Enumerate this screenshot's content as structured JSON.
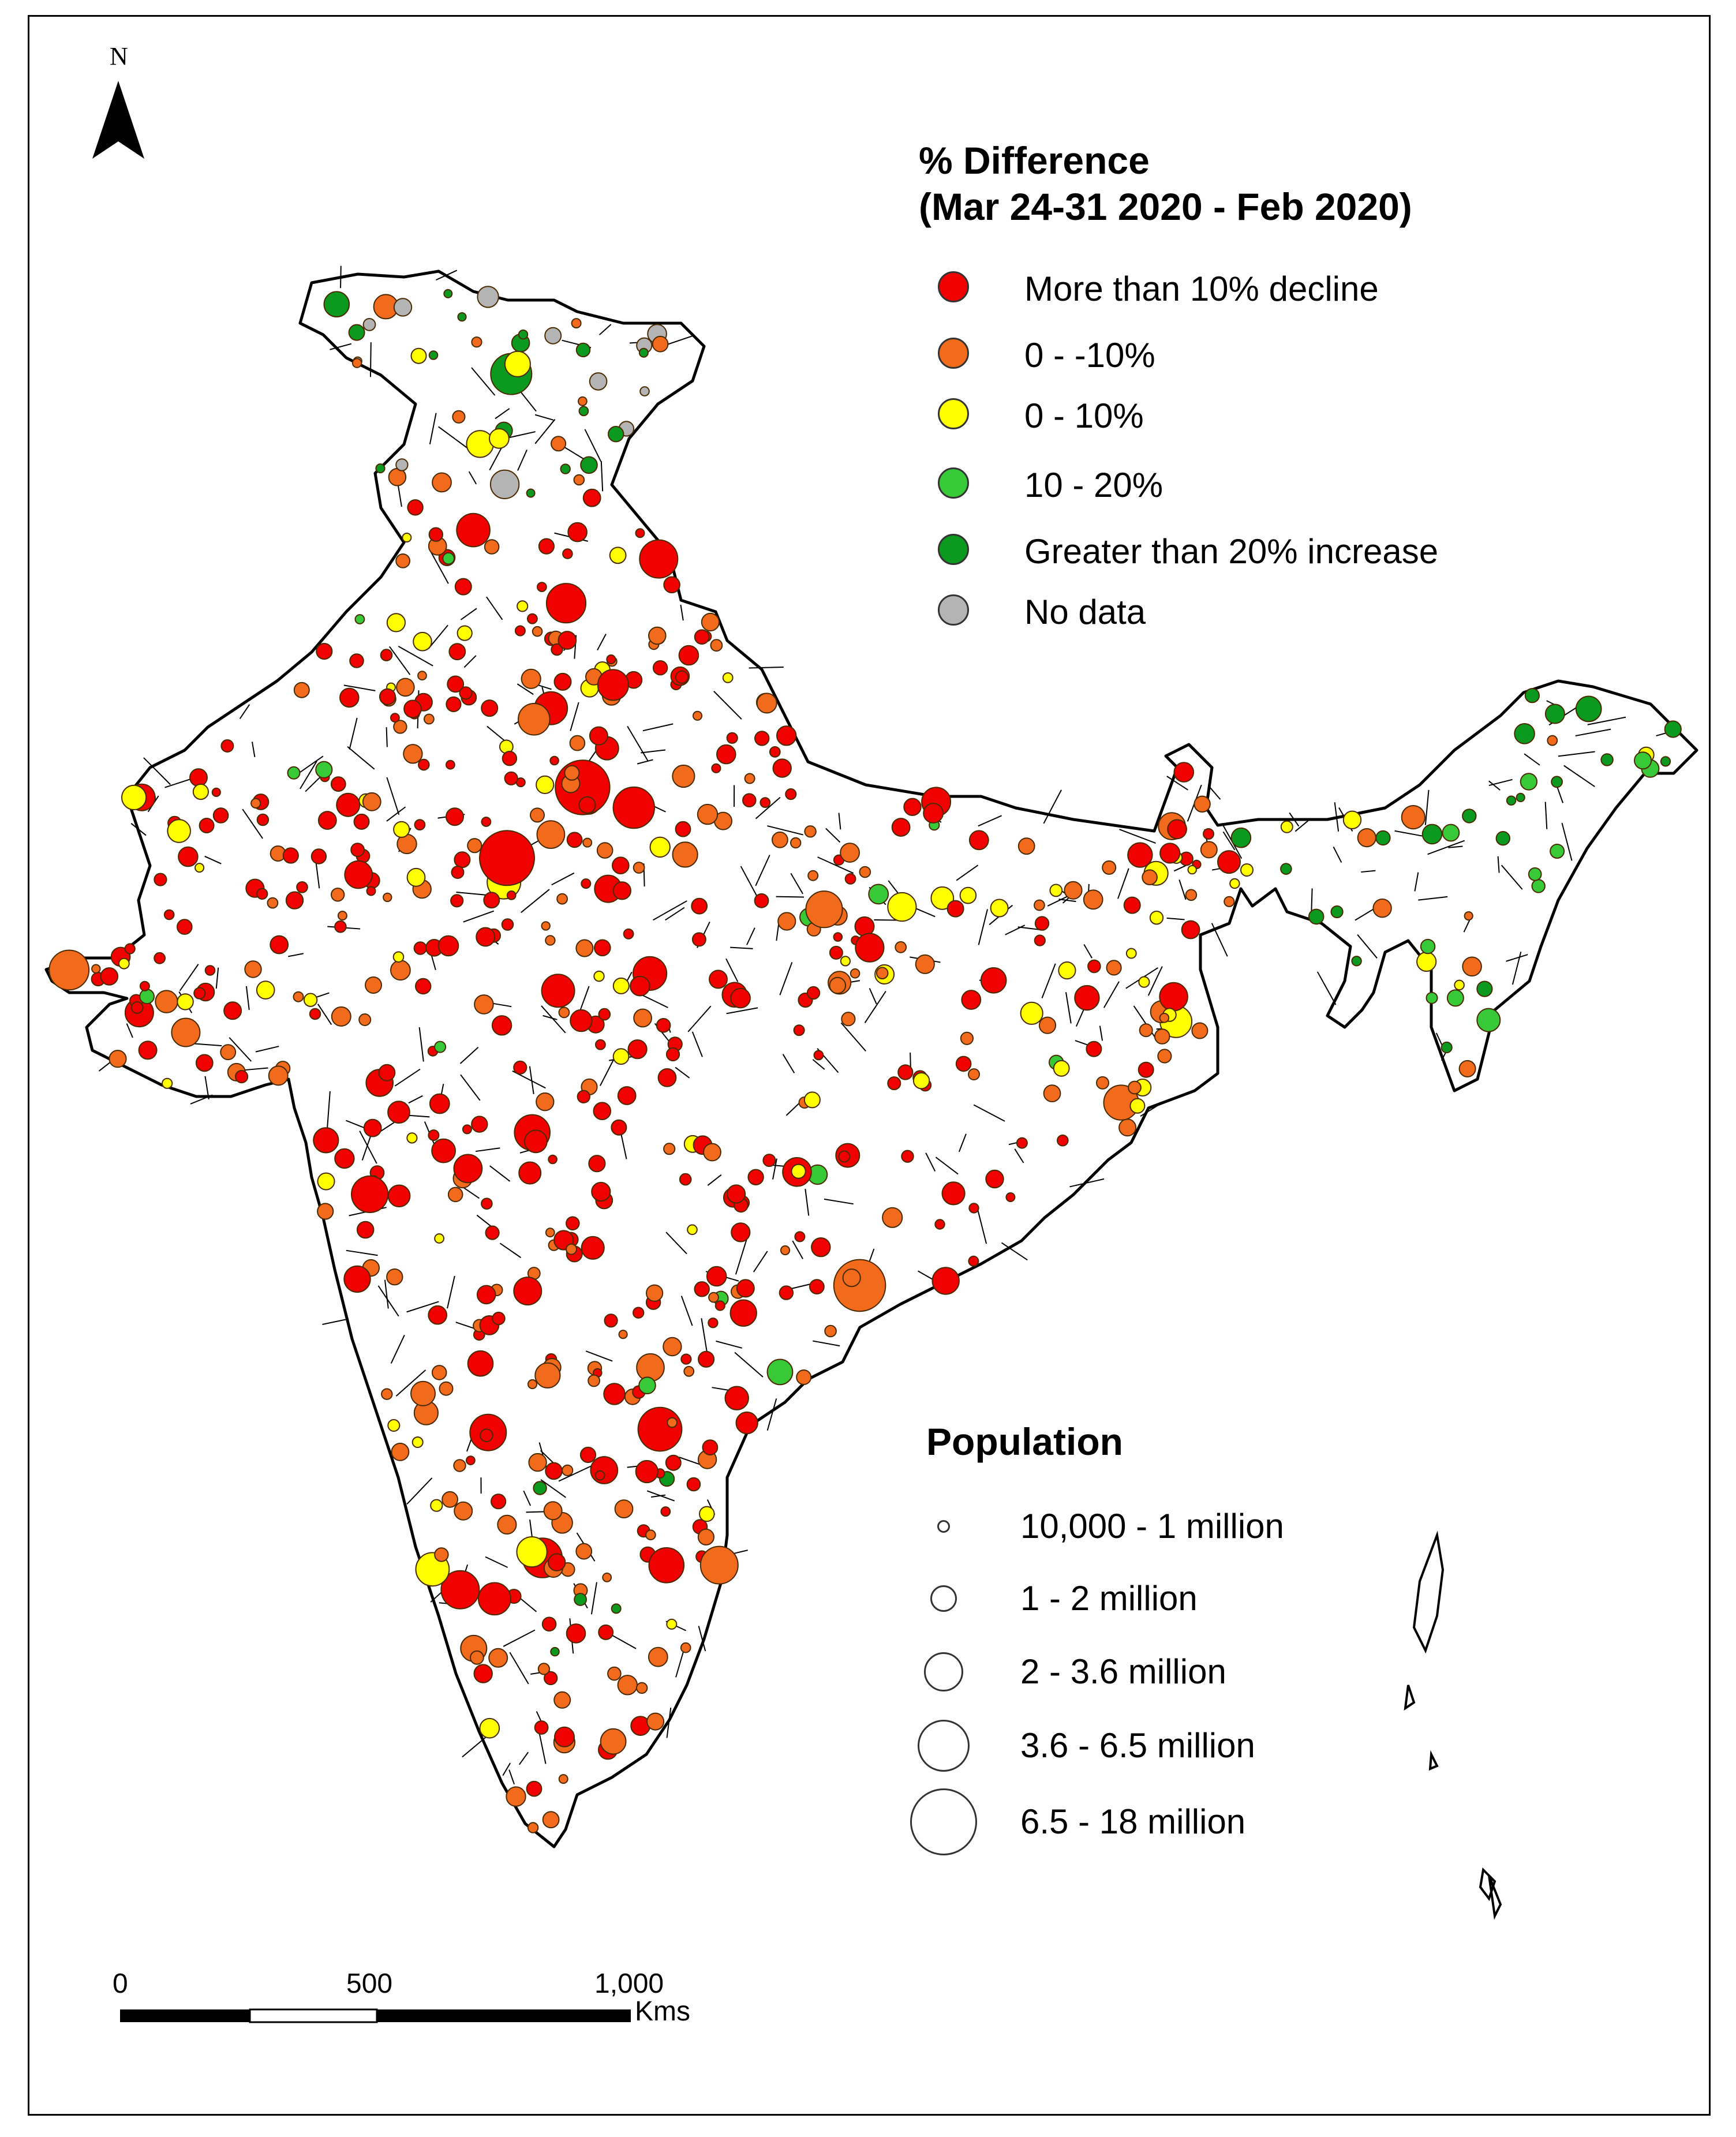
{
  "north_arrow": {
    "label": "N"
  },
  "difference_legend": {
    "title_line1": "% Difference",
    "title_line2": "(Mar 24-31  2020 - Feb 2020)",
    "items": [
      {
        "label": "More than 10% decline",
        "color": "#f00000"
      },
      {
        "label": "0 - -10%",
        "color": "#f26b1d"
      },
      {
        "label": "0 - 10%",
        "color": "#ffff00"
      },
      {
        "label": "10 - 20%",
        "color": "#38c938"
      },
      {
        "label": "Greater than 20% increase",
        "color": "#0b9a1f"
      },
      {
        "label": "No data",
        "color": "#b4b4b4"
      }
    ]
  },
  "population_legend": {
    "title": "Population",
    "items": [
      {
        "label": "10,000 - 1 million"
      },
      {
        "label": "1 - 2 million"
      },
      {
        "label": "2  - 3.6 million"
      },
      {
        "label": "3.6  - 6.5 million"
      },
      {
        "label": "6.5  - 18 million"
      }
    ]
  },
  "scale_bar": {
    "ticks": [
      "0",
      "500",
      "1,000"
    ],
    "unit": "Kms"
  }
}
